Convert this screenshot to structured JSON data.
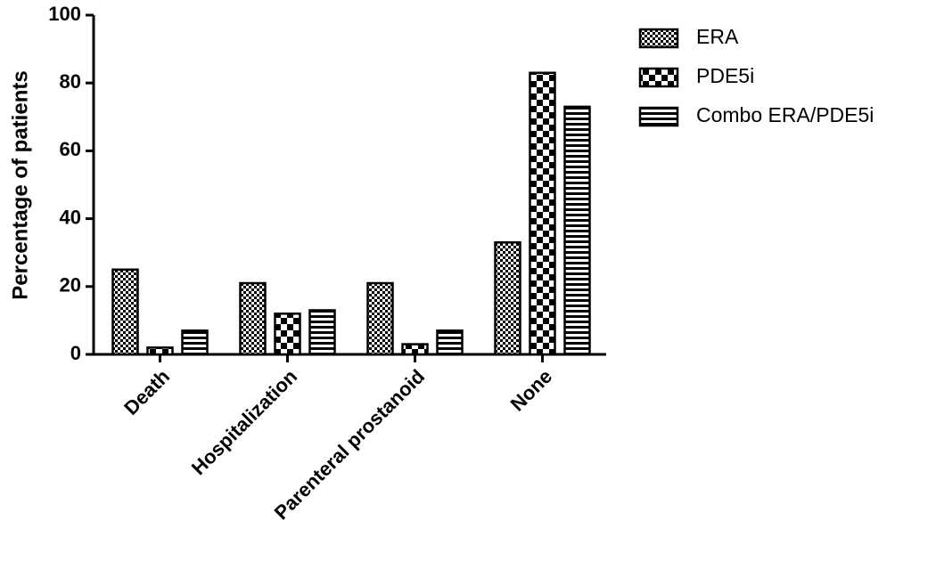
{
  "chart_data": {
    "type": "bar",
    "y_label": "Percentage of patients",
    "categories": [
      "Death",
      "Hospitalization",
      "Parenteral prostanoid",
      "None"
    ],
    "series": [
      {
        "name": "ERA",
        "color": "#000000",
        "values": [
          25,
          21,
          21,
          33
        ]
      },
      {
        "name": "PDE5i",
        "color": "#000000",
        "values": [
          2,
          12,
          3,
          83
        ]
      },
      {
        "name": "Combo ERA/PDE5i",
        "color": "#000000",
        "values": [
          7,
          13,
          7,
          73
        ]
      }
    ],
    "ylim": [
      0,
      100
    ],
    "yticks": [
      0,
      20,
      40,
      60,
      80,
      100
    ],
    "grid": false,
    "legend": "right"
  }
}
